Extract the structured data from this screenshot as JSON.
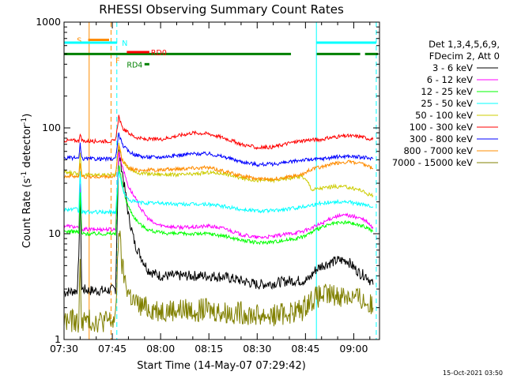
{
  "chart_data": {
    "type": "line",
    "title": "RHESSI Observing Summary Count Rates",
    "xlabel": "Start Time (14-May-07 07:29:42)",
    "ylabel": "Count Rate (s⁻¹ detector⁻¹)",
    "ylabel_base": "Count Rate (s",
    "ylabel_mid": " detector",
    "ylabel_end": ")",
    "ylabel_sup": "-1",
    "yscale": "log",
    "ylim": [
      1,
      1000
    ],
    "xlim_min": [
      0,
      98
    ],
    "x_unit": "minutes after 07:30",
    "x_ticks": [
      {
        "t": 0,
        "label": "07:30"
      },
      {
        "t": 15,
        "label": "07:45"
      },
      {
        "t": 30,
        "label": "08:00"
      },
      {
        "t": 45,
        "label": "08:15"
      },
      {
        "t": 60,
        "label": "08:30"
      },
      {
        "t": 75,
        "label": "08:45"
      },
      {
        "t": 90,
        "label": "09:00"
      }
    ],
    "y_ticks": [
      {
        "v": 1,
        "label": "1"
      },
      {
        "v": 10,
        "label": "10"
      },
      {
        "v": 100,
        "label": "100"
      },
      {
        "v": 1000,
        "label": "1000"
      }
    ],
    "legend_header": [
      "Det 1,3,4,5,6,9,",
      "FDecim 2, Att 0"
    ],
    "series": [
      {
        "name": "3 - 6 keV",
        "color": "#000000",
        "points": [
          [
            0,
            2.8
          ],
          [
            4,
            2.9
          ],
          [
            4.6,
            5.5
          ],
          [
            5,
            28
          ],
          [
            5.5,
            3
          ],
          [
            8,
            2.9
          ],
          [
            10,
            2.9
          ],
          [
            13,
            2.9
          ],
          [
            16,
            3
          ],
          [
            17,
            60
          ],
          [
            18,
            40
          ],
          [
            19,
            25
          ],
          [
            20,
            15
          ],
          [
            22,
            8
          ],
          [
            24,
            6
          ],
          [
            26,
            4.6
          ],
          [
            28,
            4.2
          ],
          [
            30,
            4
          ],
          [
            35,
            4
          ],
          [
            40,
            4
          ],
          [
            45,
            4
          ],
          [
            50,
            3.9
          ],
          [
            55,
            3.6
          ],
          [
            60,
            3.3
          ],
          [
            65,
            3.4
          ],
          [
            70,
            3.6
          ],
          [
            74,
            3.6
          ],
          [
            76,
            3.7
          ],
          [
            78,
            4.5
          ],
          [
            80,
            5
          ],
          [
            85,
            5.6
          ],
          [
            88,
            5.6
          ],
          [
            90,
            4.8
          ],
          [
            92,
            4.2
          ],
          [
            94,
            4
          ],
          [
            96,
            3.3
          ]
        ]
      },
      {
        "name": "6 - 12 keV",
        "color": "#ff00ff",
        "points": [
          [
            0,
            12
          ],
          [
            4,
            11.5
          ],
          [
            4.6,
            11
          ],
          [
            5,
            30
          ],
          [
            5.5,
            11
          ],
          [
            13,
            11
          ],
          [
            16,
            11
          ],
          [
            17,
            60
          ],
          [
            18,
            45
          ],
          [
            19,
            35
          ],
          [
            20,
            28
          ],
          [
            22,
            22
          ],
          [
            24,
            17
          ],
          [
            26,
            14
          ],
          [
            28,
            12.5
          ],
          [
            30,
            12
          ],
          [
            35,
            11.5
          ],
          [
            40,
            11.5
          ],
          [
            45,
            11.8
          ],
          [
            50,
            11.2
          ],
          [
            55,
            9.8
          ],
          [
            60,
            9.2
          ],
          [
            65,
            9.4
          ],
          [
            70,
            10
          ],
          [
            74,
            10.5
          ],
          [
            76,
            11
          ],
          [
            80,
            12.5
          ],
          [
            84,
            14.5
          ],
          [
            88,
            15
          ],
          [
            92,
            14
          ],
          [
            94,
            13
          ],
          [
            96,
            11.2
          ]
        ]
      },
      {
        "name": "12 - 25 keV",
        "color": "#00ff00",
        "points": [
          [
            0,
            10.5
          ],
          [
            4,
            10.5
          ],
          [
            4.6,
            10
          ],
          [
            5,
            25
          ],
          [
            5.5,
            10
          ],
          [
            13,
            10
          ],
          [
            16,
            10
          ],
          [
            17,
            45
          ],
          [
            18,
            30
          ],
          [
            19,
            22
          ],
          [
            20,
            18
          ],
          [
            22,
            14
          ],
          [
            24,
            12
          ],
          [
            26,
            11
          ],
          [
            28,
            10.5
          ],
          [
            30,
            10.2
          ],
          [
            35,
            10
          ],
          [
            40,
            10
          ],
          [
            45,
            10
          ],
          [
            50,
            9.5
          ],
          [
            55,
            8.7
          ],
          [
            60,
            8.2
          ],
          [
            65,
            8.4
          ],
          [
            70,
            8.8
          ],
          [
            74,
            9.3
          ],
          [
            76,
            10
          ],
          [
            80,
            11.5
          ],
          [
            84,
            12.5
          ],
          [
            88,
            12.8
          ],
          [
            92,
            12
          ],
          [
            94,
            11.5
          ],
          [
            96,
            10.5
          ]
        ]
      },
      {
        "name": "25 - 50 keV",
        "color": "#00ffff",
        "points": [
          [
            0,
            17
          ],
          [
            4,
            17
          ],
          [
            4.6,
            16
          ],
          [
            5,
            40
          ],
          [
            5.5,
            16
          ],
          [
            13,
            16
          ],
          [
            16,
            16
          ],
          [
            17,
            40
          ],
          [
            18,
            28
          ],
          [
            19,
            23
          ],
          [
            20,
            21
          ],
          [
            22,
            20
          ],
          [
            25,
            19.5
          ],
          [
            30,
            19.5
          ],
          [
            35,
            19
          ],
          [
            40,
            19
          ],
          [
            45,
            19
          ],
          [
            50,
            18
          ],
          [
            55,
            17
          ],
          [
            60,
            16.5
          ],
          [
            65,
            16.5
          ],
          [
            70,
            17.2
          ],
          [
            74,
            18
          ],
          [
            76,
            18.5
          ],
          [
            80,
            19.5
          ],
          [
            84,
            20
          ],
          [
            88,
            20
          ],
          [
            92,
            19
          ],
          [
            94,
            18.5
          ],
          [
            96,
            18
          ]
        ]
      },
      {
        "name": "50 - 100 keV",
        "color": "#cccc00",
        "points": [
          [
            0,
            38
          ],
          [
            4,
            37
          ],
          [
            4.6,
            36
          ],
          [
            5,
            60
          ],
          [
            5.5,
            36
          ],
          [
            13,
            36
          ],
          [
            16,
            36
          ],
          [
            17,
            70
          ],
          [
            18,
            50
          ],
          [
            20,
            42
          ],
          [
            22,
            38
          ],
          [
            25,
            37
          ],
          [
            30,
            36.5
          ],
          [
            35,
            36
          ],
          [
            40,
            36.5
          ],
          [
            45,
            38
          ],
          [
            50,
            37
          ],
          [
            55,
            33.5
          ],
          [
            60,
            32
          ],
          [
            65,
            32
          ],
          [
            70,
            33.5
          ],
          [
            74,
            35
          ],
          [
            76,
            30
          ],
          [
            77,
            26
          ],
          [
            80,
            27
          ],
          [
            84,
            28
          ],
          [
            88,
            27.5
          ],
          [
            92,
            26
          ],
          [
            94,
            24
          ],
          [
            96,
            23
          ]
        ]
      },
      {
        "name": "100 - 300 keV",
        "color": "#ff0000",
        "points": [
          [
            0,
            76
          ],
          [
            4,
            76
          ],
          [
            4.6,
            75
          ],
          [
            5,
            90
          ],
          [
            5.5,
            75
          ],
          [
            13,
            75
          ],
          [
            16,
            75
          ],
          [
            17,
            130
          ],
          [
            18,
            100
          ],
          [
            20,
            90
          ],
          [
            22,
            82
          ],
          [
            25,
            78
          ],
          [
            30,
            78
          ],
          [
            35,
            84
          ],
          [
            40,
            90
          ],
          [
            45,
            88
          ],
          [
            50,
            80
          ],
          [
            55,
            70
          ],
          [
            60,
            65
          ],
          [
            65,
            66
          ],
          [
            70,
            72
          ],
          [
            74,
            76
          ],
          [
            76,
            77
          ],
          [
            80,
            78
          ],
          [
            84,
            82
          ],
          [
            88,
            84
          ],
          [
            92,
            83
          ],
          [
            94,
            80
          ],
          [
            96,
            78
          ]
        ]
      },
      {
        "name": "300 - 800 keV",
        "color": "#0000ff",
        "points": [
          [
            0,
            52
          ],
          [
            4,
            52
          ],
          [
            4.6,
            51
          ],
          [
            5,
            70
          ],
          [
            5.5,
            51
          ],
          [
            13,
            51
          ],
          [
            16,
            51
          ],
          [
            17,
            90
          ],
          [
            18,
            70
          ],
          [
            20,
            60
          ],
          [
            22,
            56
          ],
          [
            25,
            53
          ],
          [
            30,
            53
          ],
          [
            35,
            55
          ],
          [
            40,
            57
          ],
          [
            45,
            57
          ],
          [
            50,
            53
          ],
          [
            55,
            48
          ],
          [
            60,
            45
          ],
          [
            65,
            45.5
          ],
          [
            70,
            47.5
          ],
          [
            74,
            50
          ],
          [
            76,
            50
          ],
          [
            80,
            51
          ],
          [
            84,
            53
          ],
          [
            88,
            54
          ],
          [
            92,
            53
          ],
          [
            94,
            52
          ],
          [
            96,
            51
          ]
        ]
      },
      {
        "name": "800 - 7000 keV",
        "color": "#ff8c00",
        "points": [
          [
            0,
            35
          ],
          [
            4,
            35
          ],
          [
            4.6,
            34.5
          ],
          [
            5,
            45
          ],
          [
            5.5,
            34.5
          ],
          [
            13,
            34.5
          ],
          [
            16,
            34.5
          ],
          [
            17,
            70
          ],
          [
            18,
            50
          ],
          [
            20,
            42
          ],
          [
            22,
            40
          ],
          [
            25,
            40
          ],
          [
            30,
            40
          ],
          [
            35,
            41
          ],
          [
            40,
            42
          ],
          [
            45,
            42
          ],
          [
            50,
            39
          ],
          [
            55,
            35
          ],
          [
            60,
            33
          ],
          [
            65,
            33
          ],
          [
            70,
            34.5
          ],
          [
            74,
            36
          ],
          [
            76,
            40
          ],
          [
            80,
            43
          ],
          [
            84,
            46
          ],
          [
            88,
            48
          ],
          [
            92,
            46
          ],
          [
            94,
            44
          ],
          [
            96,
            41
          ]
        ]
      },
      {
        "name": "7000 - 15000 keV",
        "color": "#808000",
        "points": [
          [
            0,
            1.5
          ],
          [
            4,
            1.5
          ],
          [
            4.6,
            1.4
          ],
          [
            5,
            5
          ],
          [
            5.5,
            1.5
          ],
          [
            13,
            1.5
          ],
          [
            16,
            1.5
          ],
          [
            17,
            12
          ],
          [
            18,
            5
          ],
          [
            19,
            3.5
          ],
          [
            20,
            2.8
          ],
          [
            22,
            2.2
          ],
          [
            25,
            2
          ],
          [
            30,
            1.9
          ],
          [
            40,
            1.9
          ],
          [
            45,
            1.9
          ],
          [
            50,
            1.8
          ],
          [
            55,
            1.8
          ],
          [
            60,
            1.7
          ],
          [
            65,
            1.7
          ],
          [
            70,
            1.8
          ],
          [
            74,
            1.9
          ],
          [
            76,
            2.3
          ],
          [
            80,
            2.6
          ],
          [
            84,
            2.6
          ],
          [
            88,
            2.6
          ],
          [
            92,
            2.4
          ],
          [
            94,
            2.2
          ],
          [
            96,
            2
          ]
        ]
      }
    ],
    "annotations": {
      "vlines_orange_solid": [
        7.8
      ],
      "vlines_orange_dashed": [
        14.6
      ],
      "vlines_cyan_solid": [
        78.4
      ],
      "vlines_cyan_dashed": [
        16.4,
        97
      ],
      "flags": [
        {
          "label": "S",
          "color": "#ff8c00",
          "x0": 7.5,
          "x1": 14,
          "y": 680,
          "label_t": 4
        },
        {
          "label": "F",
          "color": "#ff8c00",
          "x0": null,
          "x1": null,
          "y": 440,
          "label_t": 16
        },
        {
          "label": "N",
          "color": "#00ffff",
          "x0": 0,
          "x1": 16.5,
          "y": 640,
          "label_t": 18,
          "x2": 78.4,
          "x3": 97
        },
        {
          "label": "RD0",
          "color": "#ff0000",
          "x0": 19.5,
          "x1": 26.5,
          "y": 520,
          "label_t": 27
        },
        {
          "label": "RD4",
          "color": "#008000",
          "x0": 25,
          "x1": 26.5,
          "y": 400,
          "label_t": 19.5
        }
      ],
      "green_bar": {
        "color": "#008000",
        "y": 500,
        "segments": [
          [
            0,
            70.5
          ],
          [
            78.5,
            92
          ],
          [
            93.5,
            97.5
          ]
        ]
      }
    }
  },
  "footer_stamp": "15-Oct-2021 03:50"
}
